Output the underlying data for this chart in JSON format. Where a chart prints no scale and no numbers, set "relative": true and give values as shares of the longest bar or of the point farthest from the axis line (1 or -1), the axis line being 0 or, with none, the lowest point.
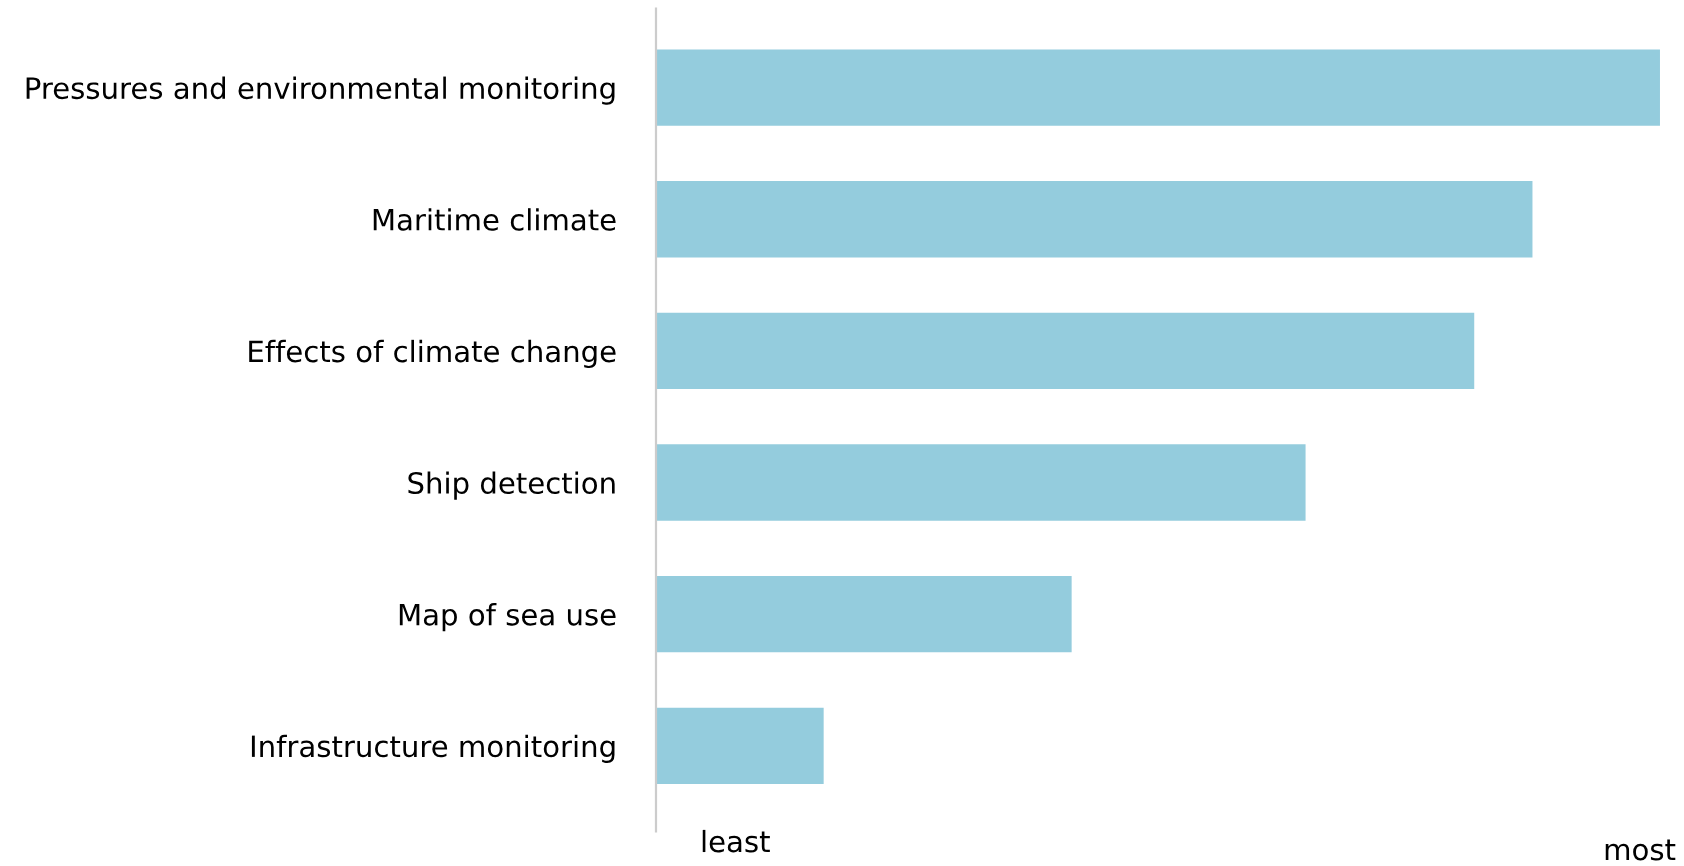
{
  "chart_data": {
    "type": "bar",
    "orientation": "horizontal",
    "relative": true,
    "categories": [
      "Pressures and environmental monitoring",
      "Maritime climate",
      "Effects of climate change",
      "Ship detection",
      "Map of sea use",
      "Infrastructure monitoring"
    ],
    "values": [
      1,
      0.873,
      0.815,
      0.647,
      0.414,
      0.167
    ],
    "color": "#94ccdd",
    "annotations": [
      "least",
      "most"
    ],
    "grid": false,
    "legend": false
  }
}
